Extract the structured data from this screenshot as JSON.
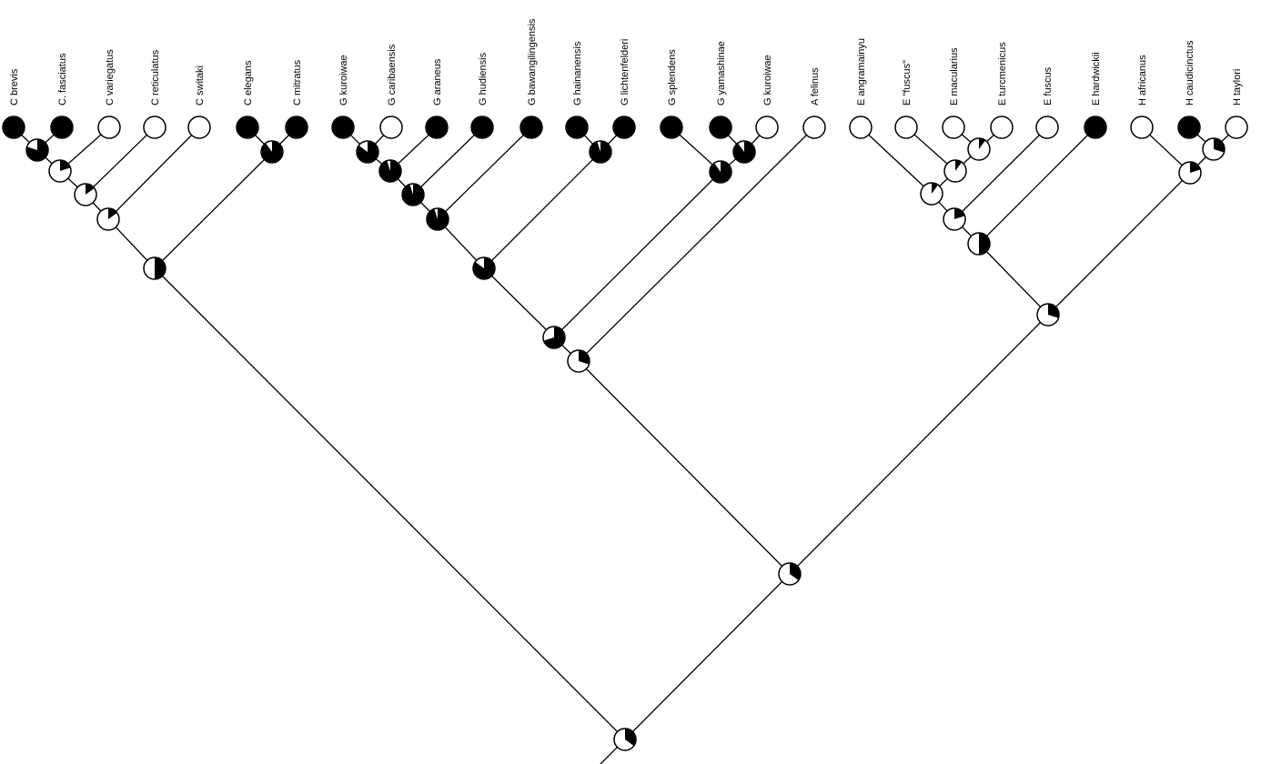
{
  "tips": [
    {
      "label": "C brevis",
      "state": 1
    },
    {
      "label": "C. fasciatus",
      "state": 1
    },
    {
      "label": "C variegatus",
      "state": 0
    },
    {
      "label": "C reticulatus",
      "state": 0
    },
    {
      "label": "C switaki",
      "state": 0
    },
    {
      "label": "C elegans",
      "state": 1
    },
    {
      "label": "C mitratus",
      "state": 1
    },
    {
      "label": "G kuroiwae",
      "state": 1
    },
    {
      "label": "G caribaensis",
      "state": 0
    },
    {
      "label": "G araneus",
      "state": 1
    },
    {
      "label": "G hudiensis",
      "state": 1
    },
    {
      "label": "G bawangilingensis",
      "state": 1
    },
    {
      "label": "G hainanensis",
      "state": 1
    },
    {
      "label": "G lichtenfelderi",
      "state": 1
    },
    {
      "label": "G splendens",
      "state": 1
    },
    {
      "label": "G yamashinae",
      "state": 1
    },
    {
      "label": "G kuroiwae",
      "state": 0
    },
    {
      "label": "A felinus",
      "state": 0
    },
    {
      "label": "E angramainyu",
      "state": 0
    },
    {
      "label": "E \"fuscus\"",
      "state": 0
    },
    {
      "label": "E macularius",
      "state": 0
    },
    {
      "label": "E turcmenicus",
      "state": 0
    },
    {
      "label": "E fuscus",
      "state": 0
    },
    {
      "label": "E hardwickii",
      "state": 1
    },
    {
      "label": "H africanus",
      "state": 0
    },
    {
      "label": "H caudicinctus",
      "state": 1
    },
    {
      "label": "H taylori",
      "state": 0
    }
  ],
  "internal_nodes": [
    {
      "id": "n1",
      "black_fraction": 0.8
    },
    {
      "id": "n2",
      "black_fraction": 0.2
    },
    {
      "id": "n3",
      "black_fraction": 0.15
    },
    {
      "id": "n4",
      "black_fraction": 0.15
    },
    {
      "id": "n5",
      "black_fraction": 0.9
    },
    {
      "id": "n6",
      "black_fraction": 0.5
    },
    {
      "id": "n7",
      "black_fraction": 0.85
    },
    {
      "id": "n8",
      "black_fraction": 0.95
    },
    {
      "id": "n9",
      "black_fraction": 0.95
    },
    {
      "id": "n10",
      "black_fraction": 0.95
    },
    {
      "id": "n11",
      "black_fraction": 0.95
    },
    {
      "id": "n12",
      "black_fraction": 0.85
    },
    {
      "id": "n13",
      "black_fraction": 0.9
    },
    {
      "id": "n14",
      "black_fraction": 0.9
    },
    {
      "id": "n15",
      "black_fraction": 0.7
    },
    {
      "id": "n16",
      "black_fraction": 0.3
    },
    {
      "id": "n17",
      "black_fraction": 0.1
    },
    {
      "id": "n18",
      "black_fraction": 0.1
    },
    {
      "id": "n19",
      "black_fraction": 0.1
    },
    {
      "id": "n20",
      "black_fraction": 0.2
    },
    {
      "id": "n21",
      "black_fraction": 0.5
    },
    {
      "id": "n22",
      "black_fraction": 0.3
    },
    {
      "id": "n23",
      "black_fraction": 0.2
    },
    {
      "id": "n24",
      "black_fraction": 0.3
    },
    {
      "id": "n25",
      "black_fraction": 0.35
    },
    {
      "id": "n26",
      "black_fraction": 0.35
    }
  ],
  "colors": {
    "state_present": "#000000",
    "state_absent": "#ffffff",
    "branch": "#000000"
  }
}
